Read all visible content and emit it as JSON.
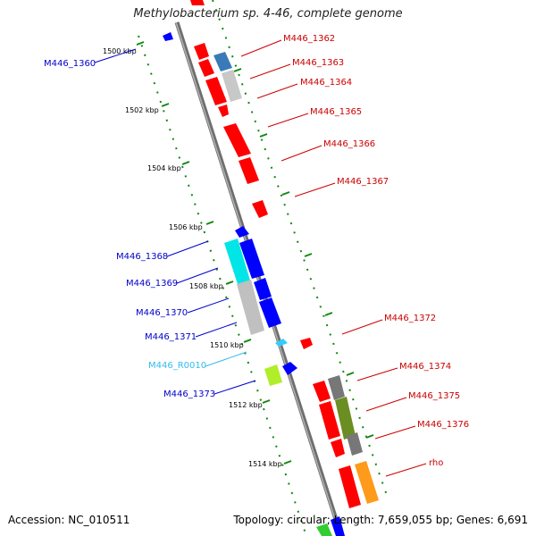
{
  "title": "Methylobacterium sp. 4-46, complete genome",
  "footer": {
    "accession": "Accession: NC_010511",
    "summary": "Topology: circular; Length: 7,659,055 bp; Genes: 6,691"
  },
  "colors": {
    "forward_gene": "#ff0000",
    "reverse_gene": "#0000ff",
    "rna_gene": "#33ccff",
    "label_forward": "#cc0000",
    "label_reverse": "#0000cc",
    "label_rna": "#33bbee",
    "backbone": "#888888",
    "ticks": "#118811"
  },
  "tick_labels": [
    "1500 kbp",
    "1502 kbp",
    "1504 kbp",
    "1506 kbp",
    "1508 kbp",
    "1510 kbp",
    "1512 kbp",
    "1514 kbp"
  ],
  "genes_forward": [
    {
      "name": "M446_1362"
    },
    {
      "name": "M446_1363"
    },
    {
      "name": "M446_1364"
    },
    {
      "name": "M446_1365"
    },
    {
      "name": "M446_1366"
    },
    {
      "name": "M446_1367"
    },
    {
      "name": "M446_1372"
    },
    {
      "name": "M446_1374"
    },
    {
      "name": "M446_1375"
    },
    {
      "name": "M446_1376"
    },
    {
      "name": "rho"
    }
  ],
  "genes_reverse": [
    {
      "name": "M446_1360"
    },
    {
      "name": "M446_1368"
    },
    {
      "name": "M446_1369"
    },
    {
      "name": "M446_1370"
    },
    {
      "name": "M446_1371"
    },
    {
      "name": "M446_R0010"
    },
    {
      "name": "M446_1373"
    }
  ]
}
